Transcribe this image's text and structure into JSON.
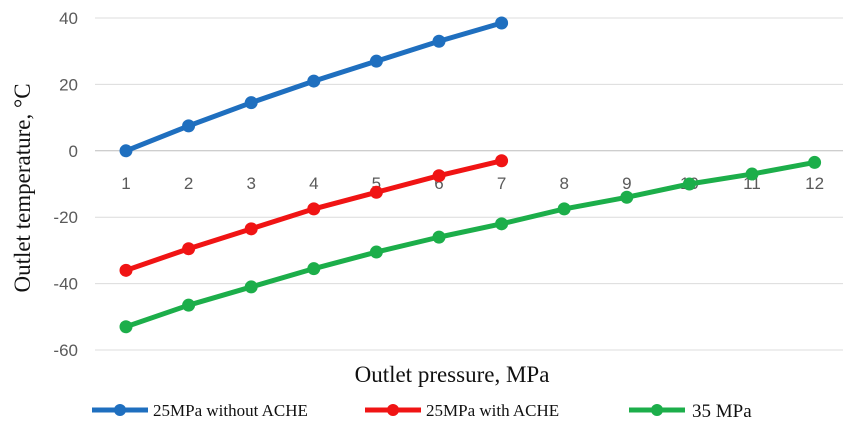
{
  "chart_data": {
    "type": "line",
    "xlabel": "Outlet pressure, MPa",
    "ylabel": "Outlet temperature, °C",
    "categories": [
      "1",
      "2",
      "3",
      "4",
      "5",
      "6",
      "7",
      "8",
      "9",
      "10",
      "11",
      "12"
    ],
    "ylim": [
      -60,
      40
    ],
    "yticks": [
      40,
      20,
      0,
      -20,
      -40,
      -60
    ],
    "grid": true,
    "legend_position": "bottom",
    "series": [
      {
        "name": "25MPa without ACHE",
        "color": "#1f6fbf",
        "x": [
          1,
          2,
          3,
          4,
          5,
          6,
          7
        ],
        "values": [
          0,
          7.5,
          14.5,
          21,
          27,
          33,
          38.5
        ]
      },
      {
        "name": "25MPa with ACHE",
        "color": "#f01414",
        "x": [
          1,
          2,
          3,
          4,
          5,
          6,
          7
        ],
        "values": [
          -36,
          -29.5,
          -23.5,
          -17.5,
          -12.5,
          -7.5,
          -3
        ]
      },
      {
        "name": "35 MPa",
        "color": "#1cae4a",
        "x": [
          1,
          2,
          3,
          4,
          5,
          6,
          7,
          8,
          9,
          10,
          11,
          12
        ],
        "values": [
          -53,
          -46.5,
          -41,
          -35.5,
          -30.5,
          -26,
          -22,
          -17.5,
          -14,
          -10,
          -7,
          -3.5
        ]
      }
    ]
  }
}
